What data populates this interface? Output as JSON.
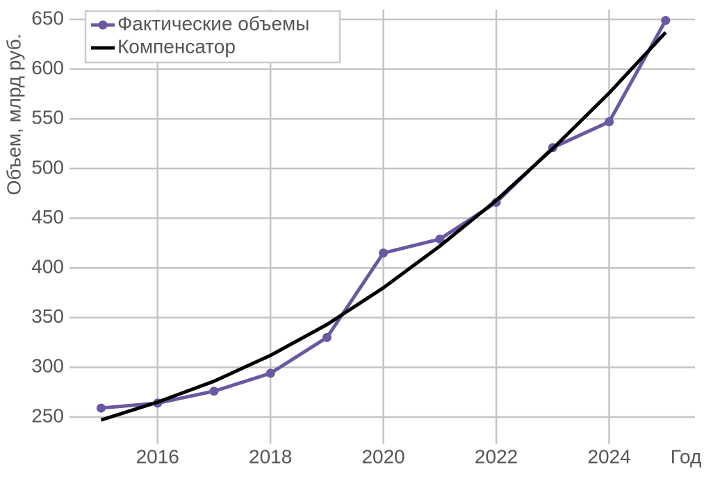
{
  "chart_data": {
    "type": "line",
    "x_label": "Год",
    "y_label": "Объем, млрд руб.",
    "x": [
      2015,
      2016,
      2017,
      2018,
      2019,
      2020,
      2021,
      2022,
      2023,
      2024,
      2025
    ],
    "series": [
      {
        "name": "Фактические объемы",
        "color": "#6a58a0",
        "markers": true,
        "values": [
          259,
          264,
          276,
          294,
          330,
          415,
          429,
          466,
          521,
          547,
          649
        ]
      },
      {
        "name": "Компенсатор",
        "color": "#000000",
        "markers": false,
        "values": [
          247,
          265,
          286,
          312,
          343,
          380,
          422,
          468,
          520,
          576,
          637
        ]
      }
    ],
    "xlim": [
      2014.44,
      2025.52
    ],
    "ylim": [
      230,
      660
    ],
    "xticks": [
      2016,
      2018,
      2020,
      2022,
      2024
    ],
    "yticks": [
      250,
      300,
      350,
      400,
      450,
      500,
      550,
      600,
      650
    ],
    "grid": true,
    "legend": "upper left"
  }
}
